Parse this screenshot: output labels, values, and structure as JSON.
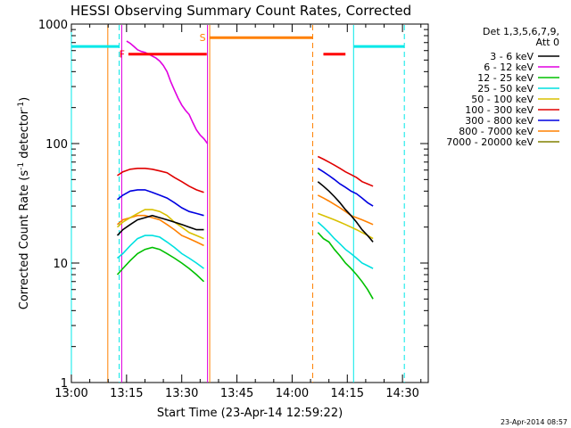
{
  "chart_data": {
    "type": "line",
    "title": "HESSI Observing Summary Count Rates, Corrected",
    "xlabel": "Start Time (23-Apr-14 12:59:22)",
    "ylabel": "Corrected Count Rate (s",
    "ylabel_sup": "-1",
    "ylabel_tail": " detector",
    "ylabel_sup2": "-1",
    "ylabel_close": ")",
    "footer": "23-Apr-2014 08:57",
    "xlim": [
      0,
      97
    ],
    "ylim": [
      1,
      1000
    ],
    "yscale": "log",
    "x_ticks": [
      {
        "label": "13:00",
        "x": 0
      },
      {
        "label": "13:15",
        "x": 15
      },
      {
        "label": "13:30",
        "x": 30
      },
      {
        "label": "13:45",
        "x": 45
      },
      {
        "label": "14:00",
        "x": 60
      },
      {
        "label": "14:15",
        "x": 75
      },
      {
        "label": "14:30",
        "x": 90
      }
    ],
    "y_ticks": [
      {
        "label": "1",
        "y": 1
      },
      {
        "label": "10",
        "y": 10
      },
      {
        "label": "100",
        "y": 100
      },
      {
        "label": "1000",
        "y": 1000
      }
    ],
    "legend": {
      "header_1": "Det 1,3,5,6,7,9,",
      "header_2": "Att 0",
      "entries": [
        {
          "label": "3 - 6 keV",
          "color": "#000000"
        },
        {
          "label": "6 - 12 keV",
          "color": "#e000e0"
        },
        {
          "label": "12 - 25 keV",
          "color": "#00c000"
        },
        {
          "label": "25 - 50 keV",
          "color": "#00e0e0"
        },
        {
          "label": "50 - 100 keV",
          "color": "#d8c000"
        },
        {
          "label": "100 - 300 keV",
          "color": "#e00000"
        },
        {
          "label": "300 - 800 keV",
          "color": "#0000e0"
        },
        {
          "label": "800 - 7000 keV",
          "color": "#ff8000"
        },
        {
          "label": "7000 - 20000 keV",
          "color": "#808000"
        }
      ]
    },
    "series": [
      {
        "name": "3 - 6 keV",
        "color": "#000000",
        "segments": [
          [
            [
              12.5,
              17
            ],
            [
              14,
              19
            ],
            [
              16,
              21
            ],
            [
              18,
              23
            ],
            [
              20,
              24
            ],
            [
              22,
              25
            ],
            [
              24,
              24
            ],
            [
              26,
              23
            ],
            [
              28,
              22
            ],
            [
              30,
              21
            ],
            [
              32,
              20
            ],
            [
              34,
              19
            ],
            [
              36,
              19
            ]
          ],
          [
            [
              67,
              48
            ],
            [
              68.5,
              44
            ],
            [
              70,
              40
            ],
            [
              71.5,
              36
            ],
            [
              73,
              32
            ],
            [
              74.5,
              28
            ],
            [
              76,
              25
            ],
            [
              77.5,
              22
            ],
            [
              79,
              19
            ],
            [
              80.5,
              17
            ],
            [
              82,
              15
            ]
          ]
        ]
      },
      {
        "name": "6 - 12 keV",
        "color": "#e000e0",
        "segments": [
          [
            [
              15,
              720
            ],
            [
              16,
              690
            ],
            [
              17,
              650
            ],
            [
              18,
              610
            ],
            [
              19,
              590
            ],
            [
              20,
              580
            ],
            [
              21,
              560
            ],
            [
              22,
              540
            ],
            [
              23,
              520
            ],
            [
              24,
              490
            ],
            [
              25,
              450
            ],
            [
              26,
              400
            ],
            [
              27,
              330
            ],
            [
              28,
              280
            ],
            [
              29,
              240
            ],
            [
              30,
              210
            ],
            [
              31,
              190
            ],
            [
              32,
              175
            ],
            [
              33,
              150
            ],
            [
              34,
              130
            ],
            [
              35,
              118
            ],
            [
              36,
              110
            ],
            [
              37,
              100
            ]
          ]
        ]
      },
      {
        "name": "12 - 25 keV",
        "color": "#00c000",
        "segments": [
          [
            [
              12.5,
              8
            ],
            [
              14,
              9
            ],
            [
              16,
              10.5
            ],
            [
              18,
              12
            ],
            [
              20,
              13
            ],
            [
              22,
              13.5
            ],
            [
              24,
              13
            ],
            [
              26,
              12
            ],
            [
              28,
              11
            ],
            [
              30,
              10
            ],
            [
              32,
              9
            ],
            [
              34,
              8
            ],
            [
              36,
              7
            ]
          ],
          [
            [
              67,
              18
            ],
            [
              68.5,
              16
            ],
            [
              70,
              15
            ],
            [
              71.5,
              13
            ],
            [
              73,
              11.5
            ],
            [
              74.5,
              10
            ],
            [
              76,
              9
            ],
            [
              77.5,
              8
            ],
            [
              79,
              7
            ],
            [
              80.5,
              6
            ],
            [
              82,
              5
            ]
          ]
        ]
      },
      {
        "name": "25 - 50 keV",
        "color": "#00e0e0",
        "segments": [
          [
            [
              12.5,
              11
            ],
            [
              14,
              12
            ],
            [
              16,
              14
            ],
            [
              18,
              16
            ],
            [
              20,
              17
            ],
            [
              22,
              17
            ],
            [
              24,
              16.5
            ],
            [
              26,
              15
            ],
            [
              28,
              13.5
            ],
            [
              30,
              12
            ],
            [
              32,
              11
            ],
            [
              34,
              10
            ],
            [
              36,
              9
            ]
          ],
          [
            [
              67,
              22
            ],
            [
              68.5,
              20
            ],
            [
              70,
              18
            ],
            [
              71.5,
              16
            ],
            [
              73,
              14.5
            ],
            [
              74.5,
              13
            ],
            [
              76,
              12
            ],
            [
              77.5,
              11
            ],
            [
              79,
              10
            ],
            [
              80.5,
              9.5
            ],
            [
              82,
              9
            ]
          ]
        ]
      },
      {
        "name": "50 - 100 keV",
        "color": "#d8c000",
        "segments": [
          [
            [
              12.5,
              20
            ],
            [
              14,
              22
            ],
            [
              16,
              24
            ],
            [
              18,
              26
            ],
            [
              20,
              28
            ],
            [
              22,
              28
            ],
            [
              24,
              27
            ],
            [
              26,
              25
            ],
            [
              28,
              22
            ],
            [
              30,
              20
            ],
            [
              32,
              18
            ],
            [
              34,
              17
            ],
            [
              36,
              16
            ]
          ],
          [
            [
              67,
              26
            ],
            [
              68.5,
              25
            ],
            [
              70,
              24
            ],
            [
              71.5,
              23
            ],
            [
              73,
              22
            ],
            [
              74.5,
              21
            ],
            [
              76,
              20
            ],
            [
              77.5,
              19
            ],
            [
              79,
              18
            ],
            [
              80.5,
              17
            ],
            [
              82,
              16
            ]
          ]
        ]
      },
      {
        "name": "100 - 300 keV",
        "color": "#e00000",
        "segments": [
          [
            [
              12.5,
              54
            ],
            [
              14,
              58
            ],
            [
              16,
              61
            ],
            [
              18,
              62
            ],
            [
              20,
              62
            ],
            [
              22,
              61
            ],
            [
              24,
              59
            ],
            [
              26,
              57
            ],
            [
              28,
              52
            ],
            [
              30,
              48
            ],
            [
              32,
              44
            ],
            [
              34,
              41
            ],
            [
              36,
              39
            ]
          ],
          [
            [
              67,
              78
            ],
            [
              68.5,
              74
            ],
            [
              70,
              70
            ],
            [
              71.5,
              66
            ],
            [
              73,
              62
            ],
            [
              74.5,
              58
            ],
            [
              76,
              55
            ],
            [
              77.5,
              52
            ],
            [
              79,
              48
            ],
            [
              80.5,
              46
            ],
            [
              82,
              44
            ]
          ]
        ]
      },
      {
        "name": "300 - 800 keV",
        "color": "#0000e0",
        "segments": [
          [
            [
              12.5,
              34
            ],
            [
              14,
              37
            ],
            [
              16,
              40
            ],
            [
              18,
              41
            ],
            [
              20,
              41
            ],
            [
              22,
              39
            ],
            [
              24,
              37
            ],
            [
              26,
              35
            ],
            [
              28,
              32
            ],
            [
              30,
              29
            ],
            [
              32,
              27
            ],
            [
              34,
              26
            ],
            [
              36,
              25
            ]
          ],
          [
            [
              67,
              62
            ],
            [
              68.5,
              58
            ],
            [
              70,
              54
            ],
            [
              71.5,
              50
            ],
            [
              73,
              46
            ],
            [
              74.5,
              43
            ],
            [
              76,
              40
            ],
            [
              77.5,
              38
            ],
            [
              79,
              35
            ],
            [
              80.5,
              32
            ],
            [
              82,
              30
            ]
          ]
        ]
      },
      {
        "name": "800 - 7000 keV",
        "color": "#ff8000",
        "segments": [
          [
            [
              12.5,
              21
            ],
            [
              14,
              23
            ],
            [
              16,
              24
            ],
            [
              18,
              25
            ],
            [
              20,
              25
            ],
            [
              22,
              24
            ],
            [
              24,
              23
            ],
            [
              26,
              21
            ],
            [
              28,
              19
            ],
            [
              30,
              17
            ],
            [
              32,
              16
            ],
            [
              34,
              15
            ],
            [
              36,
              14
            ]
          ],
          [
            [
              67,
              37
            ],
            [
              68.5,
              35
            ],
            [
              70,
              33
            ],
            [
              71.5,
              31
            ],
            [
              73,
              29
            ],
            [
              74.5,
              27
            ],
            [
              76,
              25
            ],
            [
              77.5,
              24
            ],
            [
              79,
              23
            ],
            [
              80.5,
              22
            ],
            [
              82,
              21
            ]
          ]
        ]
      }
    ],
    "bars": [
      {
        "label": "F",
        "color": "#ff0000",
        "x0": 15.5,
        "x1": 36.8,
        "y": 560
      },
      {
        "label": "",
        "color": "#ff0000",
        "x0": 68.5,
        "x1": 74.5,
        "y": 560
      },
      {
        "label": "S",
        "color": "#ff8000",
        "x0": 37.5,
        "x1": 65.5,
        "y": 770
      },
      {
        "label": "",
        "color": "#00e8e8",
        "x0": 0,
        "x1": 13,
        "y": 650
      },
      {
        "label": "",
        "color": "#00e8e8",
        "x0": 76.8,
        "x1": 90.5,
        "y": 650
      }
    ],
    "vlines": [
      {
        "x": 0,
        "color": "#00e8e8",
        "dash": false
      },
      {
        "x": 9.9,
        "color": "#ff8000",
        "dash": false
      },
      {
        "x": 13,
        "color": "#00e8e8",
        "dash": true
      },
      {
        "x": 13.7,
        "color": "#e000e0",
        "dash": false
      },
      {
        "x": 37,
        "color": "#e000e0",
        "dash": false
      },
      {
        "x": 37.6,
        "color": "#ff8000",
        "dash": false
      },
      {
        "x": 65.6,
        "color": "#ff8000",
        "dash": true
      },
      {
        "x": 76.7,
        "color": "#00e8e8",
        "dash": false
      },
      {
        "x": 90.5,
        "color": "#00e8e8",
        "dash": true
      }
    ]
  }
}
